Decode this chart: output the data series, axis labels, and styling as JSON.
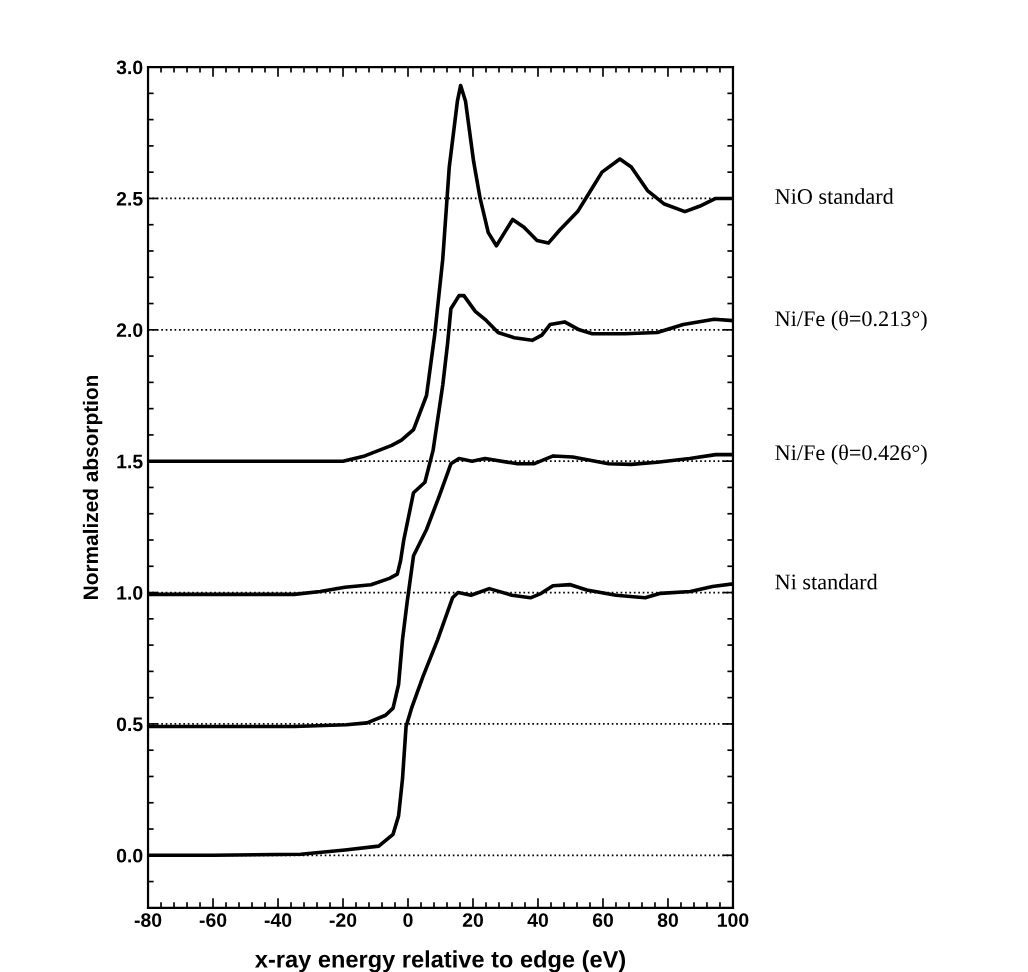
{
  "chart_data": {
    "type": "line",
    "xlabel": "x-ray energy relative to edge (eV)",
    "ylabel": "Normalized absorption",
    "xlim": [
      -80,
      100
    ],
    "xticks": [
      -80,
      -60,
      -40,
      -20,
      0,
      20,
      40,
      60,
      80,
      100
    ],
    "ylim": [
      -0.2,
      3.0
    ],
    "yticks": [
      {
        "value": 0,
        "label": "0.0"
      },
      {
        "value": 0.5,
        "label": "0.5"
      },
      {
        "value": 1,
        "label": "1.0"
      },
      {
        "value": 1.5,
        "label": "1.5"
      },
      {
        "value": 2,
        "label": "2.0"
      },
      {
        "value": 2.5,
        "label": "2.5"
      },
      {
        "value": 3,
        "label": "3.0"
      }
    ],
    "grid": "y",
    "legend": "right",
    "line_style": "solid",
    "marker": "none",
    "series": [
      {
        "name": "Ni standard",
        "color": "#000000",
        "x": [
          -80,
          -60,
          -33,
          -19.4,
          -9,
          -4.6,
          -2.9,
          -1.7,
          -0.6,
          1.1,
          4.6,
          9.1,
          13.7,
          15.4,
          19.4,
          25,
          32,
          37.7,
          41,
          44.6,
          50,
          55,
          64,
          73,
          77.7,
          86.9,
          93.7,
          100
        ],
        "values": [
          0,
          0,
          0.004,
          0.02,
          0.035,
          0.08,
          0.15,
          0.29,
          0.49,
          0.56,
          0.68,
          0.82,
          0.98,
          1.0,
          0.99,
          1.015,
          0.99,
          0.98,
          0.997,
          1.026,
          1.03,
          1.01,
          0.99,
          0.98,
          0.997,
          1.004,
          1.023,
          1.033
        ]
      },
      {
        "name": "Ni/Fe (θ=0.426°)",
        "color": "#000000",
        "x": [
          -80,
          -35,
          -19,
          -12.6,
          -6.9,
          -4.6,
          -2.9,
          -1.7,
          -0.3,
          1.7,
          5.7,
          9.7,
          13.2,
          15.7,
          19.7,
          23.7,
          33.7,
          38.7,
          44.7,
          50.7,
          61.7,
          68.7,
          76.7,
          86.7,
          94.7,
          100
        ],
        "values": [
          0.49,
          0.49,
          0.497,
          0.504,
          0.533,
          0.56,
          0.65,
          0.82,
          0.96,
          1.14,
          1.24,
          1.37,
          1.49,
          1.51,
          1.5,
          1.51,
          1.49,
          1.49,
          1.52,
          1.516,
          1.49,
          1.488,
          1.496,
          1.51,
          1.525,
          1.525
        ]
      },
      {
        "name": "Ni/Fe (θ=0.213°)",
        "color": "#000000",
        "x": [
          -80,
          -35,
          -27,
          -19.4,
          -11.4,
          -5.7,
          -3.3,
          -2.3,
          -1.3,
          1.7,
          5.2,
          7.7,
          10.7,
          12.2,
          13.2,
          15.7,
          17.2,
          20.7,
          23.7,
          27.7,
          32.7,
          38.2,
          41.2,
          43.7,
          48.2,
          52.7,
          56.7,
          66.7,
          76.7,
          84.7,
          94.2,
          100
        ],
        "values": [
          0.993,
          0.993,
          1.004,
          1.02,
          1.03,
          1.054,
          1.07,
          1.12,
          1.2,
          1.38,
          1.42,
          1.54,
          1.79,
          1.95,
          2.08,
          2.13,
          2.13,
          2.07,
          2.04,
          1.99,
          1.97,
          1.96,
          1.98,
          2.02,
          2.03,
          2.0,
          1.985,
          1.985,
          1.99,
          2.02,
          2.04,
          2.035
        ]
      },
      {
        "name": "NiO standard",
        "color": "#000000",
        "x": [
          -80,
          -20,
          -13.3,
          -5,
          -2,
          1.7,
          5.7,
          8.2,
          10.7,
          12.7,
          15.2,
          16.2,
          17.7,
          20.2,
          22.2,
          24.7,
          27.2,
          29.7,
          32.2,
          35.7,
          39.7,
          43.2,
          46.7,
          52.2,
          55.7,
          59.7,
          65.2,
          68.7,
          73.7,
          78.7,
          85.2,
          89.7,
          94.7,
          100
        ],
        "values": [
          1.5,
          1.5,
          1.52,
          1.56,
          1.58,
          1.62,
          1.75,
          1.98,
          2.27,
          2.62,
          2.87,
          2.93,
          2.87,
          2.64,
          2.5,
          2.37,
          2.32,
          2.37,
          2.42,
          2.39,
          2.34,
          2.33,
          2.38,
          2.45,
          2.52,
          2.6,
          2.65,
          2.62,
          2.53,
          2.48,
          2.45,
          2.47,
          2.5,
          2.5
        ]
      }
    ]
  }
}
